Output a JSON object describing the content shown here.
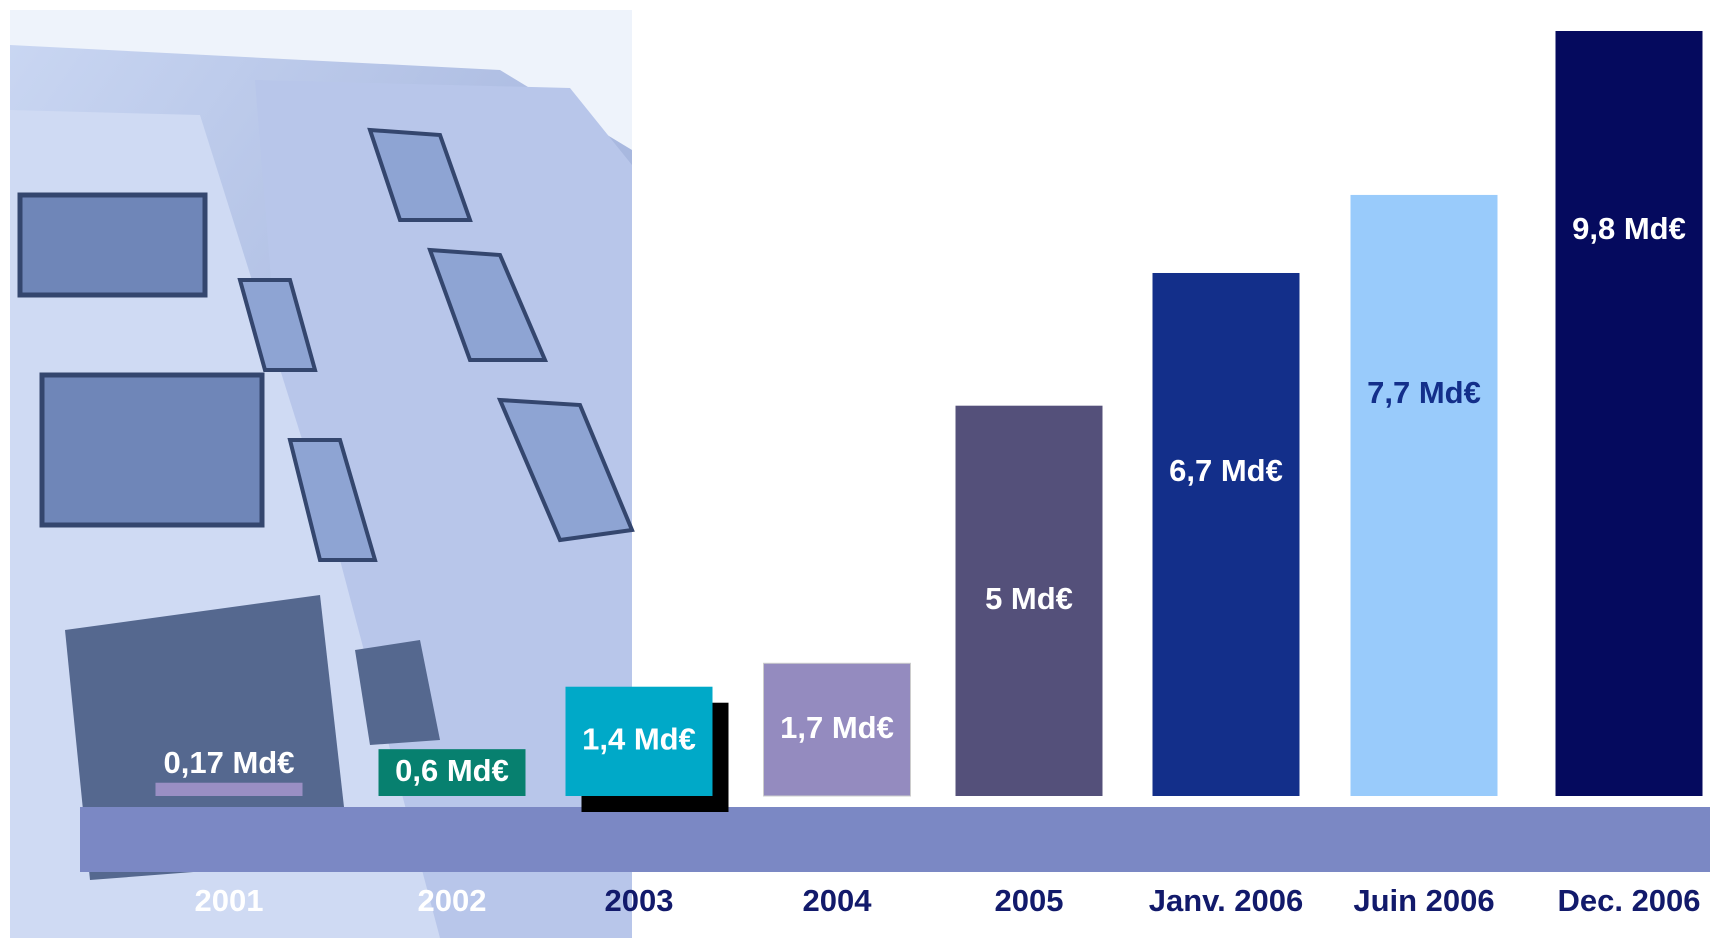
{
  "chart_data": {
    "type": "bar",
    "categories": [
      "2001",
      "2002",
      "2003",
      "2004",
      "2005",
      "Janv. 2006",
      "Juin 2006",
      "Dec. 2006"
    ],
    "values": [
      0.17,
      0.6,
      1.4,
      1.7,
      5,
      6.7,
      7.7,
      9.8
    ],
    "value_labels": [
      "0,17 Md€",
      "0,6 Md€",
      "1,4 Md€",
      "1,7 Md€",
      "5 Md€",
      "6,7 Md€",
      "7,7 Md€",
      "9,8 Md€"
    ],
    "colors": [
      "#9a8fc4",
      "#07806f",
      "#00a9c8",
      "#948bbf",
      "#54507a",
      "#132f8a",
      "#99cbfb",
      "#050a5e"
    ]
  }
}
